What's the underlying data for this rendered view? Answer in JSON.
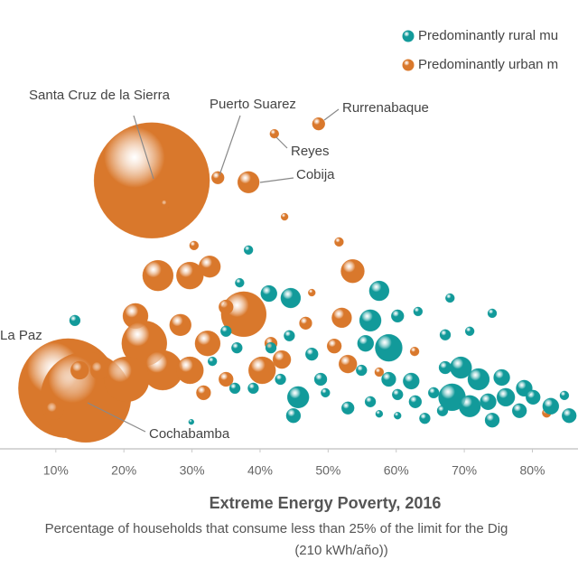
{
  "chart_data": {
    "type": "bubble",
    "x_axis_title": "Extreme Energy Poverty, 2016",
    "subtitle_lines": [
      "Percentage of households that consume less than 25% of the limit for the Dig",
      "(210 kWh/año))"
    ],
    "xlim": [
      1.8,
      86.7
    ],
    "ylim": [
      0,
      100
    ],
    "xticks": [
      {
        "value": 10,
        "label": "10%"
      },
      {
        "value": 20,
        "label": "20%"
      },
      {
        "value": 30,
        "label": "30%"
      },
      {
        "value": 40,
        "label": "40%"
      },
      {
        "value": 50,
        "label": "50%"
      },
      {
        "value": 60,
        "label": "60%"
      },
      {
        "value": 70,
        "label": "70%"
      },
      {
        "value": 80,
        "label": "80%"
      }
    ],
    "legend": "top-right",
    "annotations": [
      {
        "text": "Santa Cruz de la Sierra"
      },
      {
        "text": "Puerto Suarez"
      },
      {
        "text": "Rurrenabaque"
      },
      {
        "text": "Reyes"
      },
      {
        "text": "Cobija"
      },
      {
        "text": "La Paz"
      },
      {
        "text": "Cochabamba"
      }
    ],
    "series": [
      {
        "name": "Predominantly urban m",
        "color": "#d9782c",
        "x": [
          24.1,
          33.8,
          48.6,
          42.1,
          38.3,
          11.8,
          14.4,
          26.1,
          43.6,
          51.6,
          30.3,
          25.0,
          29.7,
          32.6,
          53.6,
          52.0,
          47.6,
          37.6,
          35.0,
          21.7,
          28.3,
          23.0,
          32.3,
          25.7,
          20.4,
          29.7,
          40.3,
          43.2,
          52.9,
          50.9,
          62.7,
          35.0,
          9.8,
          13.5,
          16.4,
          57.5,
          82.1,
          46.7,
          41.6,
          31.7
        ],
        "values": [
          59.8,
          60.4,
          72.4,
          70.2,
          59.4,
          13.5,
          11.5,
          54.5,
          51.7,
          46.1,
          45.3,
          38.6,
          38.6,
          40.6,
          39.6,
          29.2,
          34.8,
          30.0,
          31.6,
          29.6,
          27.6,
          23.5,
          23.5,
          17.5,
          15.5,
          17.5,
          17.5,
          19.9,
          18.9,
          22.9,
          21.7,
          15.5,
          8.5,
          17.5,
          17.5,
          17.1,
          8.0,
          28.0,
          23.5,
          12.5
        ],
        "sizes": [
          64,
          7,
          7,
          5,
          12,
          55,
          50,
          5,
          4,
          5,
          5,
          17,
          15,
          12,
          13,
          11,
          4,
          25,
          8,
          14,
          12,
          25,
          14,
          22,
          25,
          15,
          15,
          10,
          10,
          8,
          5,
          8,
          10,
          10,
          10,
          5,
          5,
          7,
          7,
          8
        ]
      },
      {
        "name": "Predominantly rural mu",
        "color": "#129a9a",
        "x": [
          12.8,
          38.3,
          37.0,
          41.3,
          44.5,
          57.5,
          35.0,
          36.6,
          41.6,
          44.3,
          47.6,
          56.2,
          58.9,
          55.5,
          60.2,
          63.2,
          67.9,
          74.1,
          70.8,
          67.2,
          58.9,
          62.2,
          69.5,
          67.2,
          72.1,
          75.5,
          78.8,
          68.2,
          70.8,
          73.5,
          76.1,
          80.1,
          82.7,
          85.4,
          74.1,
          78.1,
          65.5,
          62.8,
          60.2,
          56.2,
          52.9,
          49.6,
          45.6,
          43.0,
          39.0,
          36.3,
          44.9,
          54.9,
          48.9,
          64.2,
          84.7,
          66.8,
          57.5,
          60.2,
          29.9,
          33.0
        ],
        "values": [
          28.6,
          44.3,
          37.0,
          34.6,
          33.6,
          35.2,
          26.2,
          22.5,
          22.5,
          25.2,
          21.1,
          28.6,
          22.5,
          23.5,
          29.6,
          30.6,
          33.6,
          30.2,
          26.2,
          25.4,
          15.5,
          15.1,
          18.1,
          18.1,
          15.5,
          15.9,
          13.5,
          11.5,
          9.5,
          10.5,
          11.5,
          11.5,
          9.5,
          7.4,
          6.4,
          8.5,
          12.5,
          10.5,
          12.1,
          10.5,
          9.1,
          12.5,
          11.5,
          15.5,
          13.5,
          13.5,
          7.4,
          17.5,
          15.5,
          6.8,
          11.9,
          8.5,
          7.8,
          7.4,
          6.0,
          19.5
        ],
        "sizes": [
          6,
          5,
          5,
          9,
          11,
          11,
          6,
          6,
          6,
          6,
          7,
          12,
          15,
          9,
          7,
          5,
          5,
          5,
          5,
          6,
          8,
          9,
          12,
          7,
          12,
          9,
          9,
          15,
          12,
          9,
          10,
          8,
          9,
          8,
          8,
          8,
          6,
          7,
          6,
          6,
          7,
          5,
          12,
          6,
          6,
          6,
          8,
          6,
          7,
          6,
          5,
          6,
          4,
          4,
          3,
          5
        ]
      }
    ]
  }
}
